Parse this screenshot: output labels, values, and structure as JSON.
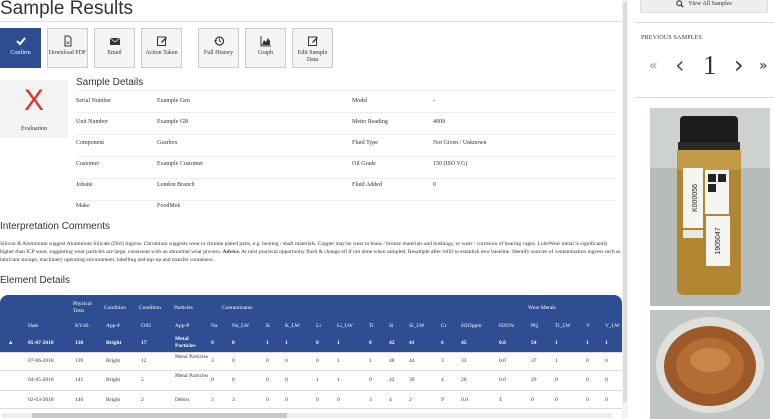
{
  "page_title": "Sample Results",
  "toolbar": [
    {
      "label": "Confirm",
      "icon": "check-icon"
    },
    {
      "label": "Download PDF",
      "icon": "pdf-icon"
    },
    {
      "label": "Email",
      "icon": "envelope-icon"
    },
    {
      "label": "Action Taken",
      "icon": "edit-icon"
    },
    {
      "label": "Full History",
      "icon": "history-icon"
    },
    {
      "label": "Graph",
      "icon": "chart-icon"
    },
    {
      "label": "Edit Sample Data",
      "icon": "edit-icon"
    }
  ],
  "sample_details": {
    "heading": "Sample Details",
    "evaluation_mark": "X",
    "evaluation_label": "Evaluation",
    "left": [
      {
        "label": "Serial Number",
        "value": "Example Gen"
      },
      {
        "label": "Unit Number",
        "value": "Example GB"
      },
      {
        "label": "Component",
        "value": "Gearbox"
      },
      {
        "label": "Customer",
        "value": "Example Customer"
      },
      {
        "label": "Jobsite",
        "value": "London Branch"
      },
      {
        "label": "Make",
        "value": "FoodMek"
      }
    ],
    "right": [
      {
        "label": "Model",
        "value": "-"
      },
      {
        "label": "Meter Reading",
        "value": "4009"
      },
      {
        "label": "Fluid Type",
        "value": "Not Given / Unknown"
      },
      {
        "label": "Oil Grade",
        "value": "150 (ISO VG)"
      },
      {
        "label": "Fluid Added",
        "value": "0"
      }
    ]
  },
  "interpretation": {
    "heading": "Interpretation Comments",
    "text": "Silicon & Aluminium suggest Aluminium Silicate (Dirt) Ingress. Chromium suggests wear to chrome plated parts, e.g. bearing / shaft materials. Copper may be wear to brass / bronze materials and bushings, or wear / corrosion of bearing cages. LubeWear metal is significantly higher than ICP wear, suggesting wear particles are large, consistent with an abnormal wear process.",
    "advice_label": "Advice.",
    "advice_text": "At next practical opportunity flush & change oil if not done when sampled. Resample after refill to establish new baseline. Identify sources of contamination ingress such as lubricant storage, machinery operating environment, labelling and top-up and transfer containers."
  },
  "element_details": {
    "heading": "Element Details",
    "group_headers": [
      "Physical Tests",
      "Condition",
      "Condition",
      "Particles",
      "Contaminants",
      "Wear Metals"
    ],
    "columns": [
      "Date",
      "KV40",
      "App-F",
      "OXI",
      "App-P",
      "Na",
      "Na_LW",
      "K",
      "K_LW",
      "Li",
      "Li_LW",
      "Ti",
      "Si",
      "Si_LW",
      "Cr",
      "H2Oppm",
      "H2O%",
      "PQ",
      "Ti_LW",
      "V",
      "V_LW"
    ],
    "rows": [
      {
        "cells": [
          "05-07-2018",
          "138",
          "Bright",
          "17",
          "Metal Particles",
          "9",
          "8",
          "1",
          "1",
          "0",
          "1",
          "0",
          "42",
          "41",
          "6",
          "45",
          "0.0",
          "54",
          "1",
          "1",
          "1"
        ],
        "active": true
      },
      {
        "cells": [
          "07-06-2018",
          "139",
          "Bright",
          "12",
          "Metal Particles",
          "3",
          "0",
          "0",
          "0",
          "0",
          "1",
          "1",
          "48",
          "44",
          "3",
          "33",
          "0.0",
          "37",
          "1",
          "0",
          "0"
        ],
        "active": false
      },
      {
        "cells": [
          "04-05-2018",
          "141",
          "Bright",
          "5",
          "Metal Particles",
          "0",
          "0",
          "0",
          "0",
          "1",
          "1",
          "0",
          "42",
          "39",
          "4",
          "20",
          "0.0",
          "29",
          "0",
          "0",
          "0"
        ],
        "active": false
      },
      {
        "cells": [
          "02-03-2018",
          "140",
          "Bright",
          "2",
          "Debris",
          "3",
          "3",
          "0",
          "0",
          "0",
          "0",
          "3",
          "4",
          "2",
          "9",
          "0.0",
          "4",
          "0",
          "0",
          "0",
          "0"
        ],
        "active": false
      }
    ]
  },
  "sidebar": {
    "view_all_label": "View All Samples",
    "previous_samples_label": "PREVIOUS SAMPLES",
    "pager": {
      "first": "«",
      "prev": "‹",
      "current": "1",
      "next": "›",
      "last": "»"
    },
    "bottle_label_top": "K000056",
    "bottle_label_bottom": "1905047"
  },
  "colors": {
    "primary": "#2e4d92",
    "evaluation": "#e0332b"
  }
}
